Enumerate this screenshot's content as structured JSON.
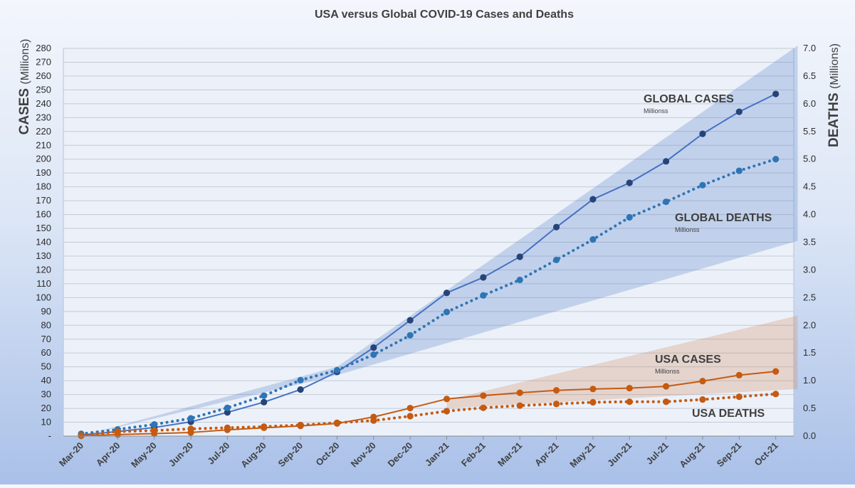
{
  "chart_data": {
    "type": "line",
    "title": "USA versus Global COVID-19 Cases and Deaths",
    "ylabel_left": {
      "main": "CASES",
      "unit": "(Millions)"
    },
    "ylabel_right": {
      "main": "DEATHS",
      "unit": "(Millions)"
    },
    "categories": [
      "Mar-20",
      "Apr-20",
      "May-20",
      "Jun-20",
      "Jul-20",
      "Aug-20",
      "Sep-20",
      "Oct-20",
      "Nov-20",
      "Dec-20",
      "Jan-21",
      "Feb-21",
      "Mar-21",
      "Apr-21",
      "May-21",
      "Jun-21",
      "Jul-21",
      "Aug-21",
      "Sep-21",
      "Oct-21"
    ],
    "ylim_left": [
      0,
      280
    ],
    "ylim_right": [
      0,
      7.0
    ],
    "left_ticks": [
      "-",
      "10",
      "20",
      "30",
      "40",
      "50",
      "60",
      "70",
      "80",
      "90",
      "100",
      "110",
      "120",
      "130",
      "140",
      "150",
      "160",
      "170",
      "180",
      "190",
      "200",
      "210",
      "220",
      "230",
      "240",
      "250",
      "260",
      "270",
      "280"
    ],
    "right_ticks": [
      "0.0",
      "0.5",
      "1.0",
      "1.5",
      "2.0",
      "2.5",
      "3.0",
      "3.5",
      "4.0",
      "4.5",
      "5.0",
      "5.5",
      "6.0",
      "6.5",
      "7.0"
    ],
    "grid": true,
    "series": [
      {
        "name": "GLOBAL CASES",
        "axis": "left",
        "style": "solid",
        "color": "#4472c4",
        "marker": "#264478",
        "values": [
          0.8,
          3.3,
          6.2,
          10.3,
          17.1,
          24.5,
          33.6,
          46.3,
          63.9,
          83.6,
          103.4,
          114.6,
          129.5,
          150.9,
          171.0,
          182.9,
          198.4,
          218.3,
          234.2,
          247.1
        ]
      },
      {
        "name": "GLOBAL DEATHS",
        "axis": "right",
        "style": "dotted",
        "color": "#2e75b6",
        "marker": "#2e75b6",
        "values": [
          0.04,
          0.12,
          0.21,
          0.32,
          0.51,
          0.73,
          1.01,
          1.19,
          1.47,
          1.82,
          2.24,
          2.54,
          2.82,
          3.18,
          3.55,
          3.95,
          4.23,
          4.53,
          4.79,
          5.0
        ]
      },
      {
        "name": "USA CASES",
        "axis": "left",
        "style": "solid",
        "color": "#c55a11",
        "marker": "#c55a11",
        "values": [
          0.2,
          1.1,
          1.8,
          2.6,
          4.5,
          6.0,
          7.3,
          9.1,
          13.8,
          20.2,
          26.8,
          29.2,
          31.3,
          33.0,
          34.0,
          34.6,
          35.9,
          39.7,
          44.0,
          46.7
        ]
      },
      {
        "name": "USA DEATHS",
        "axis": "right",
        "style": "dotted",
        "color": "#c55a11",
        "marker": "#c55a11",
        "values": [
          0.01,
          0.08,
          0.1,
          0.13,
          0.15,
          0.17,
          0.2,
          0.24,
          0.28,
          0.36,
          0.45,
          0.51,
          0.55,
          0.58,
          0.61,
          0.62,
          0.62,
          0.66,
          0.71,
          0.76
        ]
      }
    ],
    "bands": [
      {
        "series": "GLOBAL",
        "color": "#4472c4",
        "opacity": 0.25,
        "points": [
          [
            0.0,
            0.1,
            0.1
          ],
          [
            7.0,
            44.0,
            50.0
          ],
          [
            19.6,
            141.0,
            282.0
          ]
        ]
      },
      {
        "series": "USA",
        "color": "#d08a5c",
        "opacity": 0.28,
        "points": [
          [
            10.0,
            20.0,
            26.0
          ],
          [
            19.6,
            34.0,
            87.0
          ]
        ]
      }
    ],
    "annotations": [
      {
        "key": "global_cases",
        "label": "GLOBAL CASES",
        "sub": "Millionss"
      },
      {
        "key": "global_deaths",
        "label": "GLOBAL DEATHS",
        "sub": "Millionss"
      },
      {
        "key": "usa_cases",
        "label": "USA CASES",
        "sub": "Millionss"
      },
      {
        "key": "usa_deaths",
        "label": "USA DEATHS",
        "sub": ""
      }
    ]
  }
}
